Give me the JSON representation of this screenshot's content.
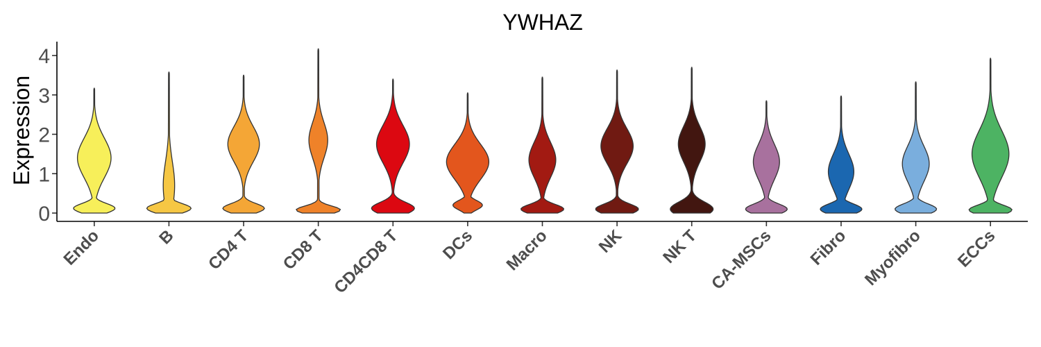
{
  "chart_data": {
    "type": "violin",
    "title": "YWHAZ",
    "ylabel": "Expression",
    "xlabel": "",
    "ylim": [
      -0.2,
      4.3
    ],
    "yticks": [
      0,
      1,
      2,
      3,
      4
    ],
    "grid": false,
    "legend": "none",
    "categories": [
      "Endo",
      "B",
      "CD4 T",
      "CD8 T",
      "CD4CD8 T",
      "DCs",
      "Macro",
      "NK",
      "NK T",
      "CA-MSCs",
      "Fibro",
      "Myofibro",
      "ECCs"
    ],
    "colors": [
      "#F7EF5A",
      "#F6C744",
      "#F4A636",
      "#EF8229",
      "#DC0811",
      "#E3561D",
      "#A21A12",
      "#701A12",
      "#421610",
      "#A8719E",
      "#1B67B0",
      "#7AAEDD",
      "#4DB363"
    ],
    "violins": [
      {
        "category": "Endo",
        "max": 3.17,
        "peaks": [
          {
            "y": 0.12,
            "w": 0.62,
            "s": 0.12
          },
          {
            "y": 1.4,
            "w": 0.5,
            "s": 0.5
          }
        ]
      },
      {
        "category": "B",
        "max": 3.58,
        "peaks": [
          {
            "y": 0.12,
            "w": 0.66,
            "s": 0.12
          },
          {
            "y": 0.7,
            "w": 0.17,
            "s": 0.6
          }
        ]
      },
      {
        "category": "CD4 T",
        "max": 3.5,
        "peaks": [
          {
            "y": 0.12,
            "w": 0.62,
            "s": 0.12
          },
          {
            "y": 1.75,
            "w": 0.47,
            "s": 0.45
          }
        ]
      },
      {
        "category": "CD8 T",
        "max": 4.17,
        "peaks": [
          {
            "y": 0.08,
            "w": 0.66,
            "s": 0.1
          },
          {
            "y": 1.85,
            "w": 0.28,
            "s": 0.45
          }
        ]
      },
      {
        "category": "CD4CD8 T",
        "max": 3.4,
        "peaks": [
          {
            "y": 0.12,
            "w": 0.64,
            "s": 0.15
          },
          {
            "y": 1.75,
            "w": 0.49,
            "s": 0.48
          }
        ]
      },
      {
        "category": "DCs",
        "max": 3.05,
        "peaks": [
          {
            "y": 0.2,
            "w": 0.44,
            "s": 0.12
          },
          {
            "y": 1.3,
            "w": 0.63,
            "s": 0.45
          }
        ]
      },
      {
        "category": "Macro",
        "max": 3.45,
        "peaks": [
          {
            "y": 0.1,
            "w": 0.64,
            "s": 0.12
          },
          {
            "y": 1.35,
            "w": 0.4,
            "s": 0.45
          }
        ]
      },
      {
        "category": "NK",
        "max": 3.63,
        "peaks": [
          {
            "y": 0.1,
            "w": 0.64,
            "s": 0.13
          },
          {
            "y": 1.7,
            "w": 0.48,
            "s": 0.45
          }
        ]
      },
      {
        "category": "NK T",
        "max": 3.7,
        "peaks": [
          {
            "y": 0.1,
            "w": 0.64,
            "s": 0.18
          },
          {
            "y": 1.75,
            "w": 0.4,
            "s": 0.45
          }
        ]
      },
      {
        "category": "CA-MSCs",
        "max": 2.85,
        "peaks": [
          {
            "y": 0.1,
            "w": 0.62,
            "s": 0.13
          },
          {
            "y": 1.3,
            "w": 0.39,
            "s": 0.45
          }
        ]
      },
      {
        "category": "Fibro",
        "max": 2.97,
        "peaks": [
          {
            "y": 0.1,
            "w": 0.62,
            "s": 0.13
          },
          {
            "y": 1.05,
            "w": 0.38,
            "s": 0.45
          }
        ]
      },
      {
        "category": "Myofibro",
        "max": 3.33,
        "peaks": [
          {
            "y": 0.1,
            "w": 0.62,
            "s": 0.13
          },
          {
            "y": 1.25,
            "w": 0.4,
            "s": 0.45
          }
        ]
      },
      {
        "category": "ECCs",
        "max": 3.93,
        "peaks": [
          {
            "y": 0.08,
            "w": 0.64,
            "s": 0.12
          },
          {
            "y": 1.5,
            "w": 0.55,
            "s": 0.6
          }
        ]
      }
    ]
  }
}
